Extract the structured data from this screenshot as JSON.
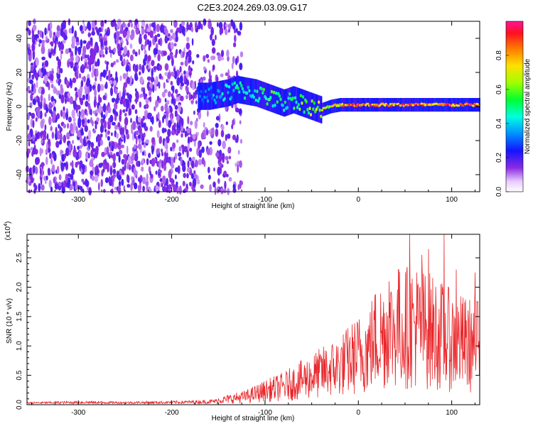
{
  "title": "C2E3.2024.269.03.09.G17",
  "chart_data": [
    {
      "type": "heatmap",
      "xlabel": "Height of straight line (km)",
      "ylabel": "Frequency (Hz)",
      "xlim": [
        -355,
        130
      ],
      "ylim": [
        -50,
        50
      ],
      "xticks": [
        -300,
        -200,
        -100,
        0,
        100
      ],
      "xtick_labels": [
        "-300",
        "-200",
        "-100",
        "0",
        "100"
      ],
      "yticks": [
        -40,
        -20,
        0,
        20,
        40
      ],
      "ytick_labels": [
        "-40",
        "-20",
        "0",
        "20",
        "40"
      ],
      "colorbar": {
        "label": "Normalized spectral amplitude",
        "range": [
          0,
          1
        ],
        "ticks": [
          0.0,
          0.2,
          0.4,
          0.6,
          0.8
        ],
        "tick_labels": [
          "0.0",
          "0.2",
          "0.4",
          "0.6",
          "0.8"
        ]
      },
      "signal_trace": {
        "x": [
          -172,
          -160,
          -150,
          -140,
          -130,
          -120,
          -110,
          -100,
          -90,
          -80,
          -70,
          -60,
          -50,
          -40,
          -30,
          -20,
          -10,
          0,
          20,
          40,
          60,
          80,
          100,
          130
        ],
        "y": [
          6,
          6,
          7,
          8,
          10,
          9,
          8,
          6,
          4,
          2,
          4,
          2,
          0,
          -2,
          0,
          1,
          1,
          1,
          1,
          1,
          1,
          1,
          1,
          1
        ],
        "amplitude": [
          0.3,
          0.35,
          0.4,
          0.45,
          0.5,
          0.45,
          0.45,
          0.55,
          0.55,
          0.5,
          0.55,
          0.6,
          0.65,
          0.7,
          0.7,
          0.8,
          0.85,
          0.9,
          0.9,
          0.9,
          0.9,
          0.9,
          0.9,
          0.9
        ]
      },
      "noise_region_x": [
        -355,
        -125
      ],
      "grid": false
    },
    {
      "type": "line",
      "xlabel": "Height of straight line (km)",
      "ylabel": "SNR (10 * v/v)",
      "scale_label": "(x10",
      "scale_exp": "4",
      "xlim": [
        -355,
        130
      ],
      "ylim": [
        0,
        2.9
      ],
      "xticks": [
        -300,
        -200,
        -100,
        0,
        100
      ],
      "xtick_labels": [
        "-300",
        "-200",
        "-100",
        "0",
        "100"
      ],
      "yticks": [
        0.0,
        0.5,
        1.0,
        1.5,
        2.0,
        2.5
      ],
      "ytick_labels": [
        "0.0",
        "0.5",
        "1.0",
        "1.5",
        "2.0",
        "2.5"
      ],
      "color": "#e8262a",
      "envelope": {
        "x": [
          -355,
          -300,
          -250,
          -200,
          -160,
          -140,
          -120,
          -100,
          -80,
          -60,
          -40,
          -20,
          0,
          10,
          20,
          40,
          60,
          80,
          100,
          120,
          130
        ],
        "y": [
          0.03,
          0.05,
          0.04,
          0.05,
          0.07,
          0.12,
          0.18,
          0.3,
          0.4,
          0.55,
          0.7,
          0.85,
          1.1,
          1.2,
          1.5,
          1.65,
          1.75,
          1.6,
          1.4,
          1.3,
          1.3
        ]
      },
      "peaks": [
        {
          "x": 33,
          "y": 2.1
        },
        {
          "x": 43,
          "y": 2.3
        },
        {
          "x": 55,
          "y": 2.9
        },
        {
          "x": 68,
          "y": 2.55
        },
        {
          "x": 75,
          "y": 2.65
        },
        {
          "x": 92,
          "y": 2.9
        },
        {
          "x": 105,
          "y": 2.3
        },
        {
          "x": 125,
          "y": 2.25
        }
      ],
      "grid": false
    }
  ]
}
